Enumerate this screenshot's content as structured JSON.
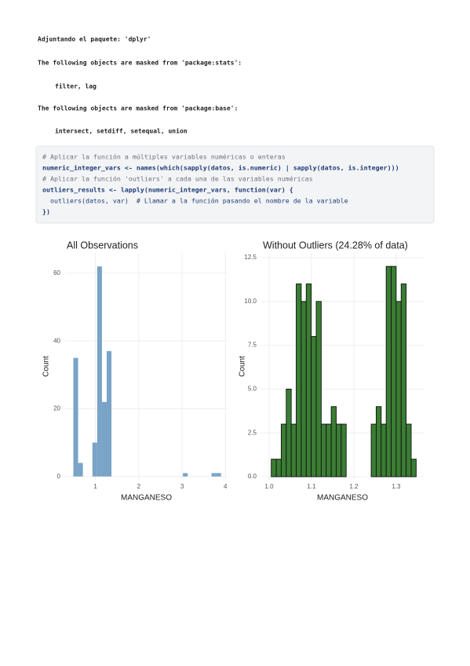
{
  "messages": [
    "Adjuntando el paquete: 'dplyr'",
    "The following objects are masked from 'package:stats':",
    "filter, lag",
    "The following objects are masked from 'package:base':",
    "intersect, setdiff, setequal, union"
  ],
  "code": [
    "# Aplicar la función a múltiples variables numéricas o enteras",
    "numeric_integer_vars <- names(which(sapply(datos, is.numeric) | sapply(datos, is.integer)))",
    "# Aplicar la función 'outliers' a cada una de las variables numéricas",
    "outliers_results <- lapply(numeric_integer_vars, function(var) {",
    "  outliers(datos, var)  # Llamar a la función pasando el nombre de la variable",
    "})"
  ],
  "chart_data": [
    {
      "type": "histogram",
      "title": "All Observations",
      "xlabel": "MANGANESO",
      "ylabel": "Count",
      "bins": [
        0.49,
        0.6,
        0.71,
        0.82,
        0.93,
        1.04,
        1.15,
        1.26,
        1.37,
        1.48,
        1.59,
        1.7,
        1.81,
        1.92,
        2.03,
        2.14,
        2.25,
        2.36,
        2.47,
        2.58,
        2.69,
        2.8,
        2.91,
        3.02,
        3.13,
        3.24,
        3.35,
        3.46,
        3.57,
        3.68,
        3.79,
        3.9,
        4.01
      ],
      "counts": [
        35,
        4,
        0,
        0,
        10,
        62,
        22,
        37,
        0,
        0,
        0,
        0,
        0,
        0,
        0,
        0,
        0,
        0,
        0,
        0,
        0,
        0,
        0,
        1,
        0,
        0,
        0,
        0,
        0,
        1,
        1,
        0
      ],
      "color": "#7aa3c8",
      "xlim": [
        0.3,
        4.05
      ],
      "ylim": [
        -1,
        66
      ],
      "xticks": [
        1,
        2,
        3,
        4
      ],
      "yticks": [
        0,
        20,
        40,
        60
      ],
      "grid": true
    },
    {
      "type": "histogram",
      "title": "Without Outliers (24.28% of data)",
      "xlabel": "MANGANESO",
      "ylabel": "Count",
      "bins": [
        1.005,
        1.0168,
        1.0286,
        1.0404,
        1.0522,
        1.064,
        1.0758,
        1.0876,
        1.0994,
        1.1112,
        1.123,
        1.1348,
        1.1466,
        1.1584,
        1.1702,
        1.182,
        1.1938,
        1.2056,
        1.2174,
        1.2292,
        1.241,
        1.2528,
        1.2646,
        1.2764,
        1.2882,
        1.3,
        1.3118,
        1.3236,
        1.3354,
        1.3472
      ],
      "counts": [
        1,
        1,
        3,
        5,
        3,
        11,
        10,
        11,
        8,
        10,
        3,
        3,
        4,
        3,
        3,
        0,
        0,
        0,
        0,
        0,
        3,
        4,
        3,
        12,
        12,
        10,
        11,
        3,
        1
      ],
      "color": "#3a7d33",
      "edgecolor": "#111111",
      "xlim": [
        0.9815,
        1.365
      ],
      "ylim": [
        -0.18,
        12.77
      ],
      "xticks": [
        {
          "value": 1,
          "label": "1.0"
        },
        1.1,
        1.2,
        1.3
      ],
      "yticks": [
        {
          "value": 0,
          "label": "0.0"
        },
        2.5,
        {
          "value": 5,
          "label": "5.0"
        },
        7.5,
        {
          "value": 10,
          "label": "10.0"
        },
        12.5
      ],
      "grid": true
    }
  ]
}
